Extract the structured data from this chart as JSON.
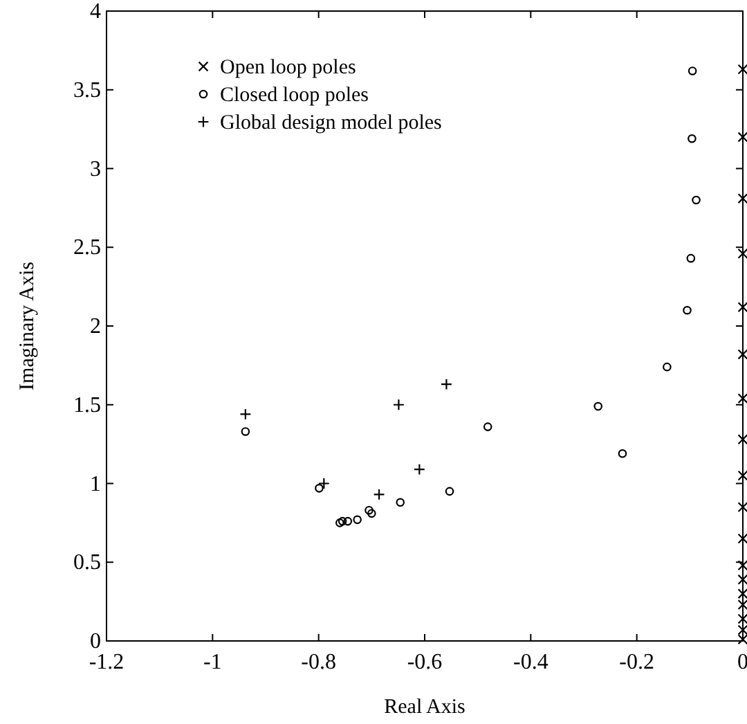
{
  "chart_data": {
    "type": "scatter",
    "xlabel": "Real Axis",
    "ylabel": "Imaginary Axis",
    "xlim": [
      -1.2,
      0
    ],
    "ylim": [
      0,
      4
    ],
    "xticks": [
      -1.2,
      -1,
      -0.8,
      -0.6,
      -0.4,
      -0.2,
      0
    ],
    "yticks": [
      0,
      0.5,
      1,
      1.5,
      2,
      2.5,
      3,
      3.5,
      4
    ],
    "grid": false,
    "legend": "top left",
    "series": [
      {
        "name": "Open loop poles",
        "color": "#000000",
        "marker": "cross",
        "x": [
          0,
          0,
          0,
          0,
          0,
          0,
          0,
          0,
          0,
          0,
          0,
          0,
          0,
          0,
          0,
          0,
          0,
          0
        ],
        "values": [
          3.63,
          3.2,
          2.81,
          2.46,
          2.12,
          1.82,
          1.54,
          1.28,
          1.05,
          0.85,
          0.65,
          0.48,
          0.39,
          0.3,
          0.23,
          0.14,
          0.07,
          0.01
        ]
      },
      {
        "name": "Closed loop poles",
        "color": "#000000",
        "marker": "circle",
        "x": [
          -0.095,
          -0.096,
          -0.088,
          -0.098,
          -0.105,
          -0.143,
          -0.273,
          -0.227,
          -0.481,
          -0.553,
          -0.938,
          -0.799,
          -0.646,
          -0.7,
          -0.705,
          -0.727,
          -0.745,
          -0.76,
          -0.755
        ],
        "values": [
          3.62,
          3.19,
          2.8,
          2.43,
          2.1,
          1.74,
          1.49,
          1.19,
          1.36,
          0.95,
          1.33,
          0.97,
          0.88,
          0.81,
          0.83,
          0.77,
          0.76,
          0.75,
          0.76
        ]
      },
      {
        "name": "Global design model poles",
        "color": "#000000",
        "marker": "plus",
        "x": [
          -0.938,
          -0.79,
          -0.686,
          -0.649,
          -0.559,
          -0.61
        ],
        "values": [
          1.44,
          1.0,
          0.93,
          1.5,
          1.63,
          1.09
        ]
      }
    ]
  }
}
